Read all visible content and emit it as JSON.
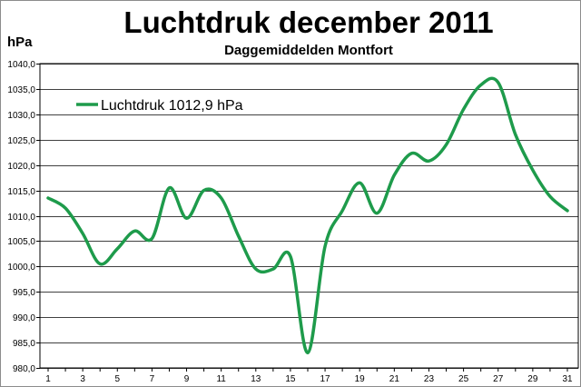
{
  "chart_data": {
    "type": "line",
    "title": "Luchtdruk december 2011",
    "subtitle": "Daggemiddelden Montfort",
    "ylabel": "hPa",
    "xlabel": "",
    "ylim": [
      980,
      1040
    ],
    "xlim": [
      1,
      31
    ],
    "grid": "horizontal",
    "legend_position": "top-left",
    "y_ticks": [
      "980,0",
      "985,0",
      "990,0",
      "995,0",
      "1000,0",
      "1005,0",
      "1010,0",
      "1015,0",
      "1020,0",
      "1025,0",
      "1030,0",
      "1035,0",
      "1040,0"
    ],
    "x_ticks": [
      "1",
      "3",
      "5",
      "7",
      "9",
      "11",
      "13",
      "15",
      "17",
      "19",
      "21",
      "23",
      "25",
      "27",
      "29",
      "31"
    ],
    "series": [
      {
        "name": "Luchtdruk 1012,9 hPa",
        "color": "#1e9b4b",
        "x": [
          1,
          2,
          3,
          4,
          5,
          6,
          7,
          8,
          9,
          10,
          11,
          12,
          13,
          14,
          15,
          16,
          17,
          18,
          19,
          20,
          21,
          22,
          23,
          24,
          25,
          26,
          27,
          28,
          29,
          30,
          31
        ],
        "values": [
          1013.5,
          1011.5,
          1006.5,
          1000.5,
          1003.5,
          1007,
          1005.5,
          1015.5,
          1009.5,
          1015,
          1013.5,
          1006,
          999.5,
          999.5,
          1002,
          983,
          1004,
          1011,
          1016.5,
          1010.5,
          1018,
          1022.3,
          1020.8,
          1024,
          1031,
          1035.8,
          1036.3,
          1026,
          1019,
          1013.8,
          1011
        ]
      }
    ]
  }
}
